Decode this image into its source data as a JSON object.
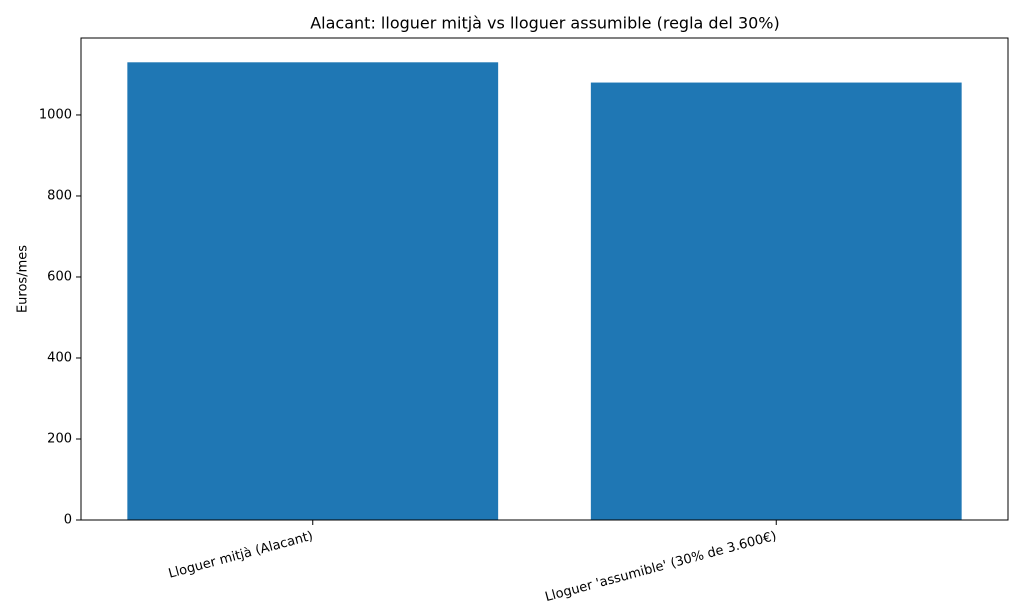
{
  "chart_data": {
    "type": "bar",
    "title": "Alacant: lloguer mitjà vs lloguer assumible (regla del 30%)",
    "y_label": "Euros/mes",
    "categories": [
      "Lloguer mitjà (Alacant)",
      "Lloguer 'assumible' (30% de 3.600€)"
    ],
    "values": [
      1130,
      1080
    ],
    "color": "#1f77b4",
    "ylim": [
      0,
      1190
    ],
    "yticks": [
      0,
      200,
      400,
      600,
      800,
      1000
    ],
    "grid": false
  }
}
